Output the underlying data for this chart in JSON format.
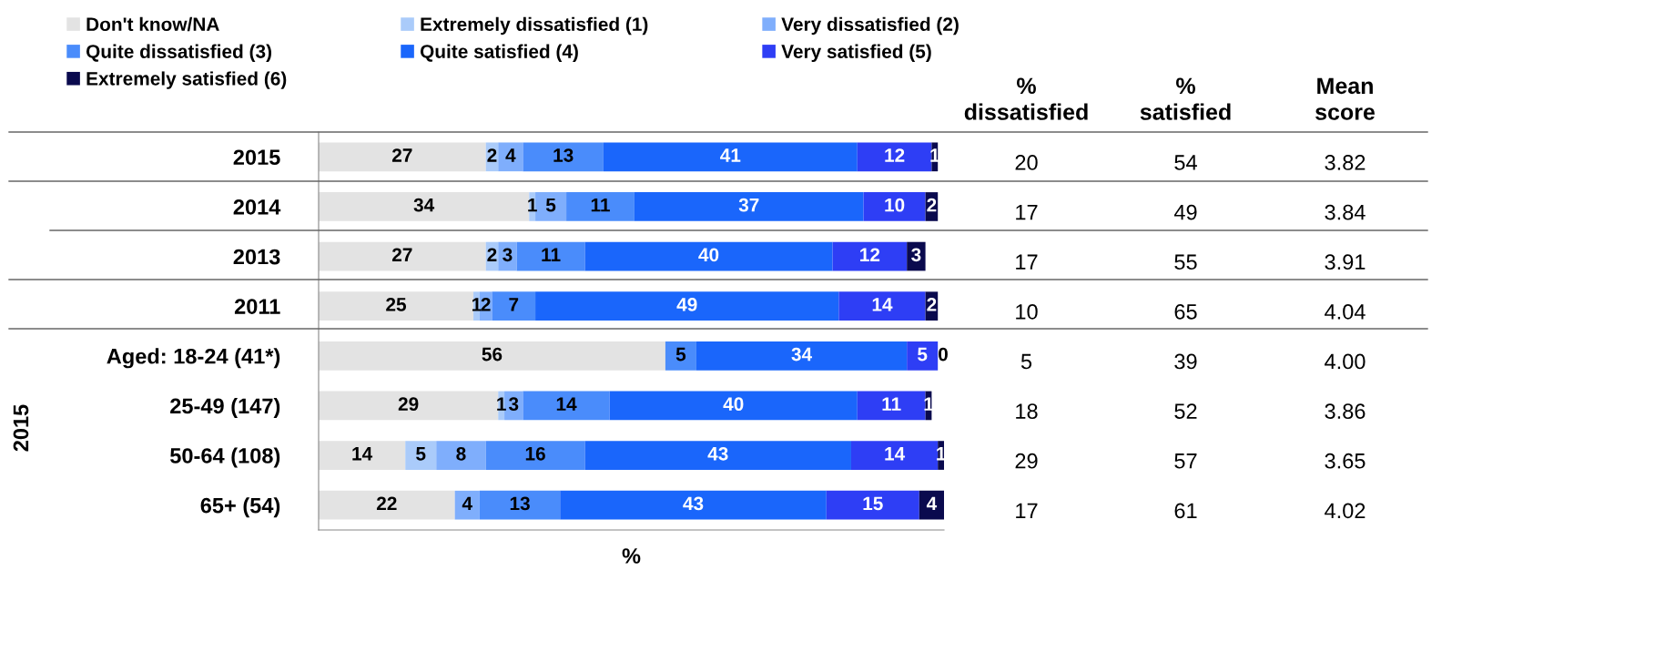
{
  "chart_data": [
    {
      "type": "bar",
      "orientation": "horizontal",
      "stacked": true,
      "categories": [
        "2015",
        "2014",
        "2013",
        "2011",
        "Aged: 18-24 (41*)",
        "25-49 (147)",
        "50-64 (108)",
        "65+ (54)"
      ],
      "series": [
        {
          "name": "Don't know/NA",
          "color": "#e3e3e3",
          "values": [
            27,
            34,
            27,
            25,
            56,
            29,
            14,
            22
          ],
          "value_labels": [
            "27",
            "34",
            "27",
            "25",
            "56",
            "29",
            "14",
            "22"
          ]
        },
        {
          "name": "Extremely dissatisfied (1)",
          "color": "#aacbfa",
          "values": [
            2,
            1,
            2,
            1,
            0,
            1,
            5,
            0
          ],
          "value_labels": [
            "2",
            "1",
            "2",
            "1",
            null,
            "1",
            "5",
            null
          ]
        },
        {
          "name": "Very dissatisfied (2)",
          "color": "#7faefc",
          "values": [
            4,
            5,
            3,
            2,
            0,
            3,
            8,
            4
          ],
          "value_labels": [
            "4",
            "5",
            "3",
            "2",
            null,
            "3",
            "8",
            "4"
          ]
        },
        {
          "name": "Quite dissatisfied (3)",
          "color": "#4a8cfb",
          "values": [
            13,
            11,
            11,
            7,
            5,
            14,
            16,
            13
          ],
          "value_labels": [
            "13",
            "11",
            "11",
            "7",
            "5",
            "14",
            "16",
            "13"
          ]
        },
        {
          "name": "Quite satisfied (4)",
          "color": "#1a66fb",
          "values": [
            41,
            37,
            40,
            49,
            34,
            40,
            43,
            43
          ],
          "value_labels": [
            "41",
            "37",
            "40",
            "49",
            "34",
            "40",
            "43",
            "43"
          ]
        },
        {
          "name": "Very satisfied (5)",
          "color": "#2e3ef5",
          "values": [
            12,
            10,
            12,
            14,
            5,
            11,
            14,
            15
          ],
          "value_labels": [
            "12",
            "10",
            "12",
            "14",
            "5",
            "11",
            "14",
            "15"
          ]
        },
        {
          "name": "Extremely satisfied (6)",
          "color": "#0a0a4e",
          "values": [
            1,
            2,
            3,
            2,
            0,
            1,
            1,
            4
          ],
          "value_labels": [
            "1",
            "2",
            "3",
            "2",
            "0",
            "1",
            "1",
            "4"
          ]
        }
      ],
      "xlim": [
        0,
        101
      ],
      "xlabel": "%",
      "tick_labels": "y",
      "legend": "top left",
      "grid": false,
      "annotations": [
        "2015"
      ]
    },
    {
      "type": "other",
      "categories": [
        "% dissatisfied",
        "% satisfied",
        "Mean score"
      ],
      "annotations": [
        "20",
        "54",
        "3.82",
        "17",
        "49",
        "3.84",
        "17",
        "55",
        "3.91",
        "10",
        "65",
        "4.04",
        "5",
        "39",
        "4.00",
        "18",
        "52",
        "3.86",
        "29",
        "57",
        "3.65",
        "17",
        "61",
        "4.02"
      ]
    }
  ]
}
